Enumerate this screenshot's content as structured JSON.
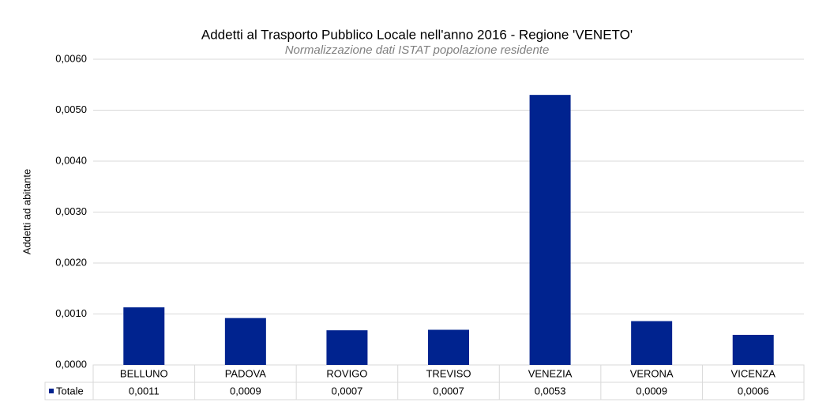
{
  "chart_data": {
    "type": "bar",
    "title": "Addetti al Trasporto Pubblico Locale nell'anno 2016 - Regione 'VENETO'",
    "subtitle": "Normalizzazione dati ISTAT popolazione residente",
    "y_label": "Addetti ad abitante",
    "categories": [
      "BELLUNO",
      "PADOVA",
      "ROVIGO",
      "TREVISO",
      "VENEZIA",
      "VERONA",
      "VICENZA"
    ],
    "series": [
      {
        "name": "Totale",
        "color": "#00238f",
        "values": [
          0.00113,
          0.00092,
          0.00068,
          0.00069,
          0.0053,
          0.00086,
          0.00059
        ],
        "value_labels": [
          "0,0011",
          "0,0009",
          "0,0007",
          "0,0007",
          "0,0053",
          "0,0009",
          "0,0006"
        ]
      }
    ],
    "ylim": [
      0,
      0.006
    ],
    "yticks": [
      {
        "value": 0,
        "label": "0,0000"
      },
      {
        "value": 0.001,
        "label": "0,0010"
      },
      {
        "value": 0.002,
        "label": "0,0020"
      },
      {
        "value": 0.003,
        "label": "0,0030"
      },
      {
        "value": 0.004,
        "label": "0,0040"
      },
      {
        "value": 0.005,
        "label": "0,0050"
      },
      {
        "value": 0.006,
        "label": "0,0060"
      }
    ],
    "grid": true
  }
}
